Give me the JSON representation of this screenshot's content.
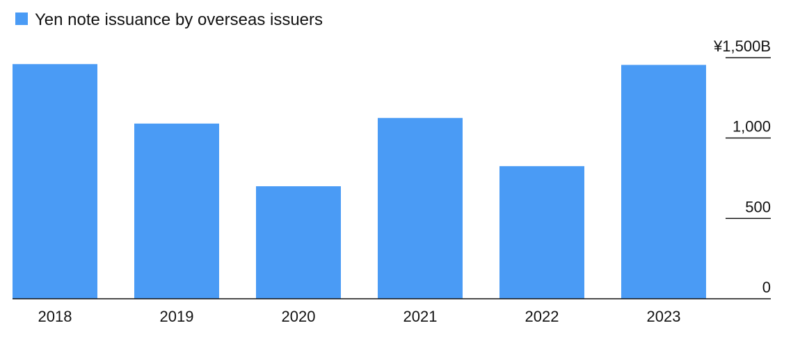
{
  "chart_data": {
    "type": "bar",
    "categories": [
      "2018",
      "2019",
      "2020",
      "2021",
      "2022",
      "2023"
    ],
    "series": [
      {
        "name": "Yen note issuance by overseas issuers",
        "values": [
          1460,
          1090,
          700,
          1125,
          825,
          1455
        ]
      }
    ],
    "ylim": [
      0,
      1500
    ],
    "y_ticks": [
      0,
      500,
      1000,
      1500
    ],
    "y_tick_labels": [
      "0",
      "500",
      "1,000",
      "¥1,500B"
    ],
    "legend_position": "top-left",
    "grid": false,
    "colors": {
      "bar": "#4A9BF5",
      "axis": "#111111"
    }
  }
}
